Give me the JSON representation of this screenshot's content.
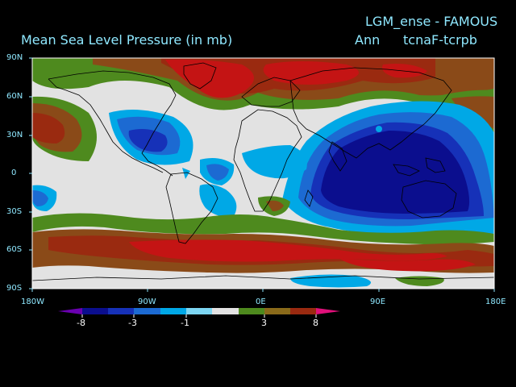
{
  "header": {
    "experiment": "LGM_ense - FAMOUS",
    "title": "Mean Sea Level Pressure (in mb)",
    "period": "Ann",
    "difference": "tcnaF-tcrpb"
  },
  "axes": {
    "lat_ticks": [
      "90N",
      "60N",
      "30N",
      "0",
      "30S",
      "60S",
      "90S"
    ],
    "lon_ticks": [
      "180W",
      "90W",
      "0E",
      "90E",
      "180E"
    ]
  },
  "colorbar": {
    "labels": [
      "-8",
      "-3",
      "-1",
      "3",
      "8"
    ],
    "colors": [
      "#6a00b0",
      "#0b0e8e",
      "#1631b8",
      "#1c6ad2",
      "#00a8e6",
      "#7dd6f2",
      "#e2e2e2",
      "#4e8a1e",
      "#8a6a1a",
      "#9a2a10",
      "#c41414",
      "#e0107a"
    ]
  },
  "colors": {
    "text": "#8fe8ff",
    "background": "#000000",
    "neutral": "#e2e2e2",
    "deep_blue": "#0b0e8e",
    "mid_blue": "#1631b8",
    "light_blue": "#00a8e6",
    "green": "#4e8a1e",
    "brown": "#8a4a18",
    "red": "#c41414"
  }
}
